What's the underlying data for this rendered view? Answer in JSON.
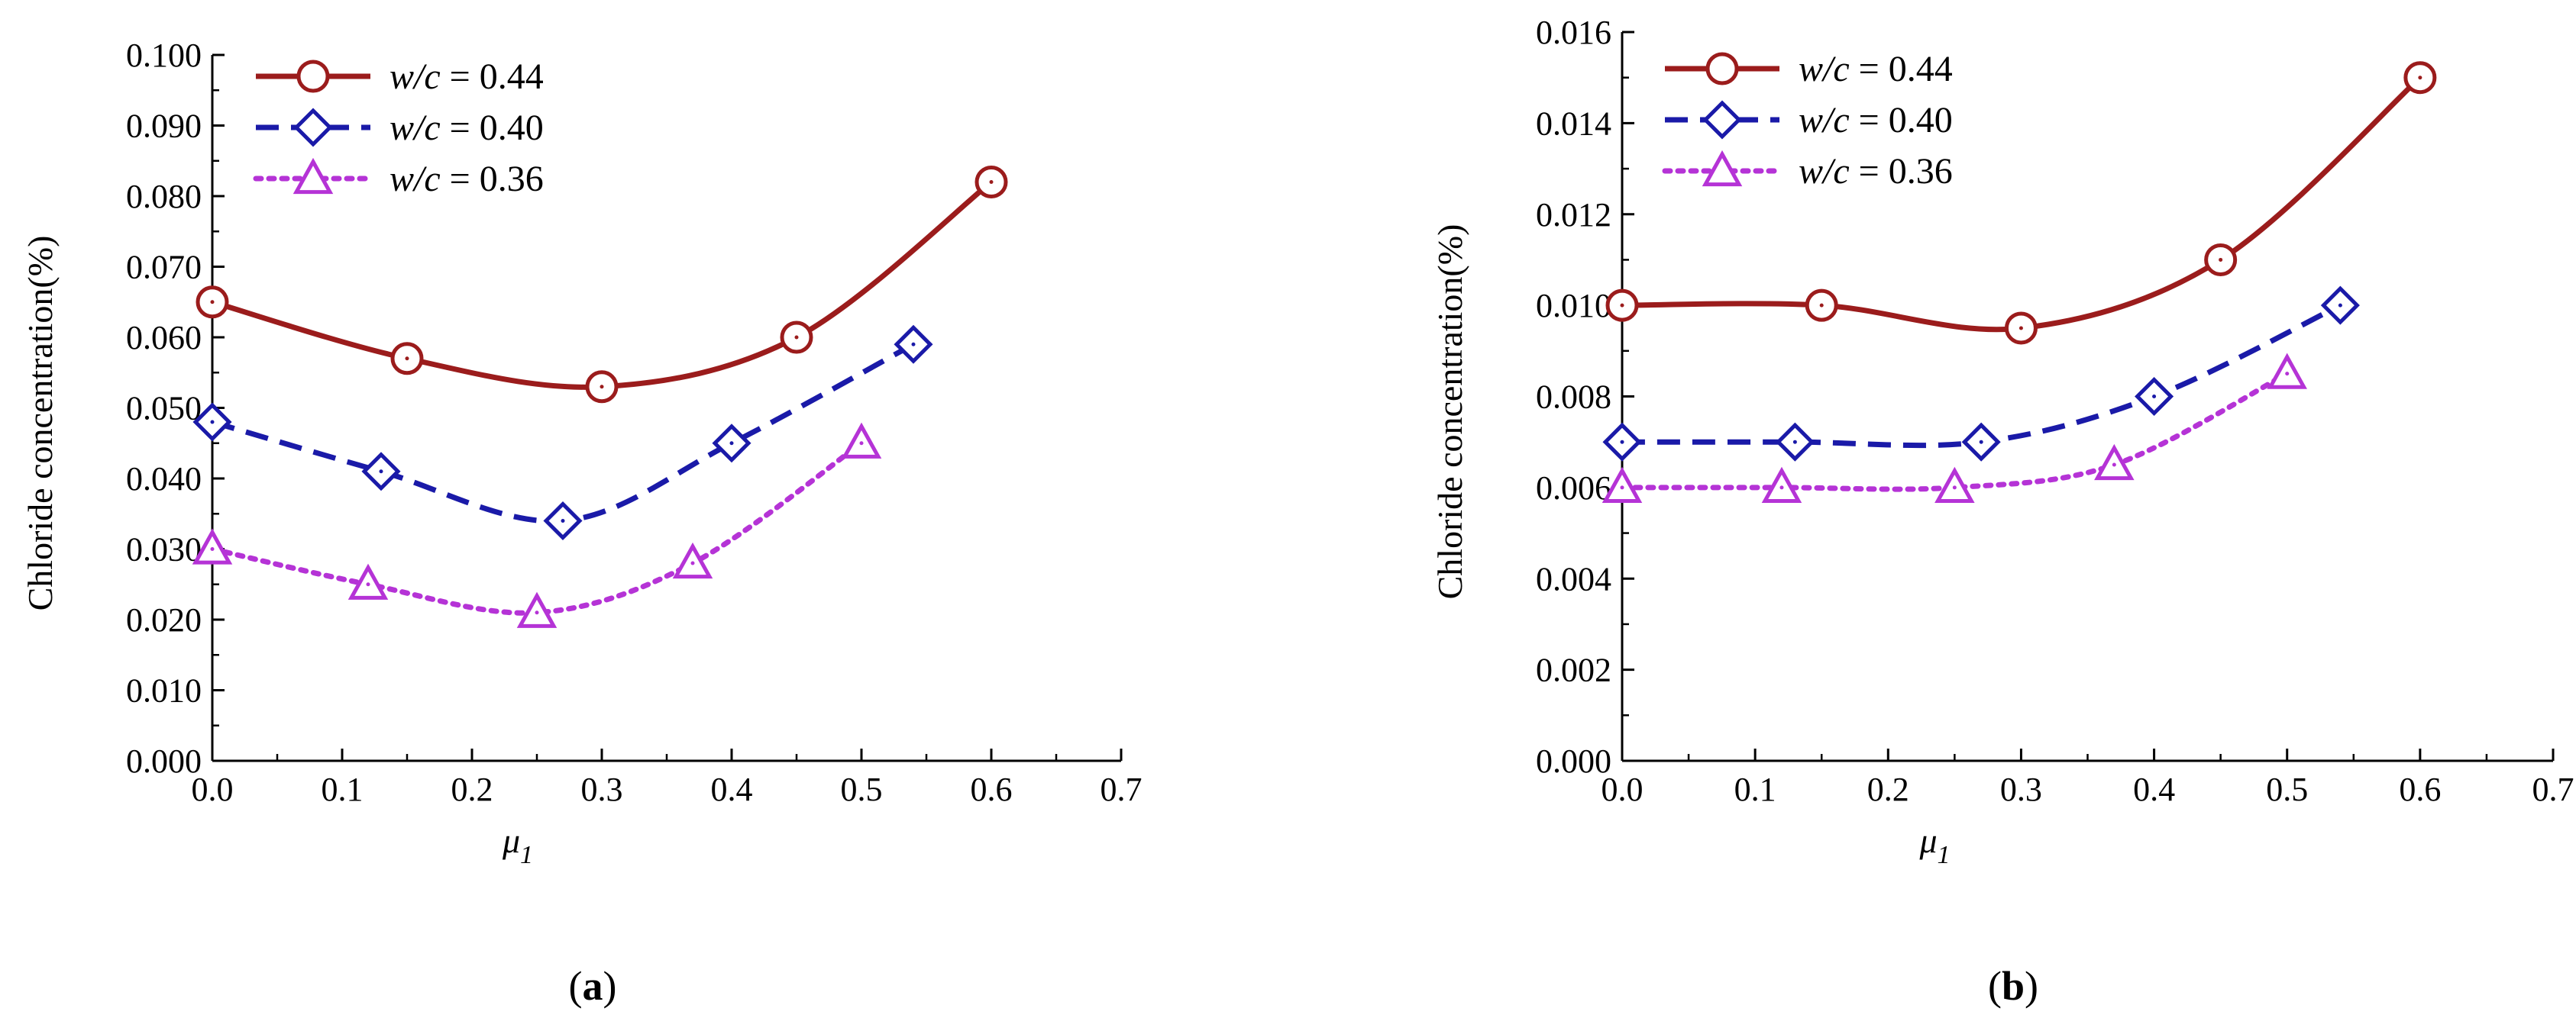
{
  "chart_data": [
    {
      "type": "line",
      "panel_label": "a",
      "xlabel": "μ",
      "xlabel_sub": "1",
      "ylabel": "Chloride concentration(%)",
      "xlim": [
        0.0,
        0.7
      ],
      "ylim": [
        0.0,
        0.1
      ],
      "xticks": [
        "0.0",
        "0.1",
        "0.2",
        "0.3",
        "0.4",
        "0.5",
        "0.6",
        "0.7"
      ],
      "yticks": [
        "0.000",
        "0.010",
        "0.020",
        "0.030",
        "0.040",
        "0.050",
        "0.060",
        "0.070",
        "0.080",
        "0.090",
        "0.100"
      ],
      "legend_position": "top-left",
      "series": [
        {
          "name_prefix": "w/c",
          "name_value": " = 0.44",
          "color": "#9b1c1c",
          "marker": "circle",
          "dash": "solid",
          "x": [
            0.0,
            0.15,
            0.3,
            0.45,
            0.6
          ],
          "y": [
            0.065,
            0.057,
            0.053,
            0.06,
            0.082
          ]
        },
        {
          "name_prefix": "w/c",
          "name_value": " = 0.40",
          "color": "#1a1aa8",
          "marker": "diamond",
          "dash": "dashed",
          "x": [
            0.0,
            0.13,
            0.27,
            0.4,
            0.54
          ],
          "y": [
            0.048,
            0.041,
            0.034,
            0.045,
            0.059
          ]
        },
        {
          "name_prefix": "w/c",
          "name_value": " = 0.36",
          "color": "#b533d6",
          "marker": "triangle",
          "dash": "dotted",
          "x": [
            0.0,
            0.12,
            0.25,
            0.37,
            0.5
          ],
          "y": [
            0.03,
            0.025,
            0.021,
            0.028,
            0.045
          ]
        }
      ]
    },
    {
      "type": "line",
      "panel_label": "b",
      "xlabel": "μ",
      "xlabel_sub": "1",
      "ylabel": "Chloride concentration(%)",
      "xlim": [
        0.0,
        0.7
      ],
      "ylim": [
        0.0,
        0.016
      ],
      "xticks": [
        "0.0",
        "0.1",
        "0.2",
        "0.3",
        "0.4",
        "0.5",
        "0.6",
        "0.7"
      ],
      "yticks": [
        "0.000",
        "0.002",
        "0.004",
        "0.006",
        "0.008",
        "0.010",
        "0.012",
        "0.014",
        "0.016"
      ],
      "legend_position": "top-left",
      "series": [
        {
          "name_prefix": "w/c",
          "name_value": " = 0.44",
          "color": "#9b1c1c",
          "marker": "circle",
          "dash": "solid",
          "x": [
            0.0,
            0.15,
            0.3,
            0.45,
            0.6
          ],
          "y": [
            0.01,
            0.01,
            0.0095,
            0.011,
            0.015
          ]
        },
        {
          "name_prefix": "w/c",
          "name_value": " = 0.40",
          "color": "#1a1aa8",
          "marker": "diamond",
          "dash": "dashed",
          "x": [
            0.0,
            0.13,
            0.27,
            0.4,
            0.54
          ],
          "y": [
            0.007,
            0.007,
            0.007,
            0.008,
            0.01
          ]
        },
        {
          "name_prefix": "w/c",
          "name_value": " = 0.36",
          "color": "#b533d6",
          "marker": "triangle",
          "dash": "dotted",
          "x": [
            0.0,
            0.12,
            0.25,
            0.37,
            0.5
          ],
          "y": [
            0.006,
            0.006,
            0.006,
            0.0065,
            0.0085
          ]
        }
      ]
    }
  ]
}
